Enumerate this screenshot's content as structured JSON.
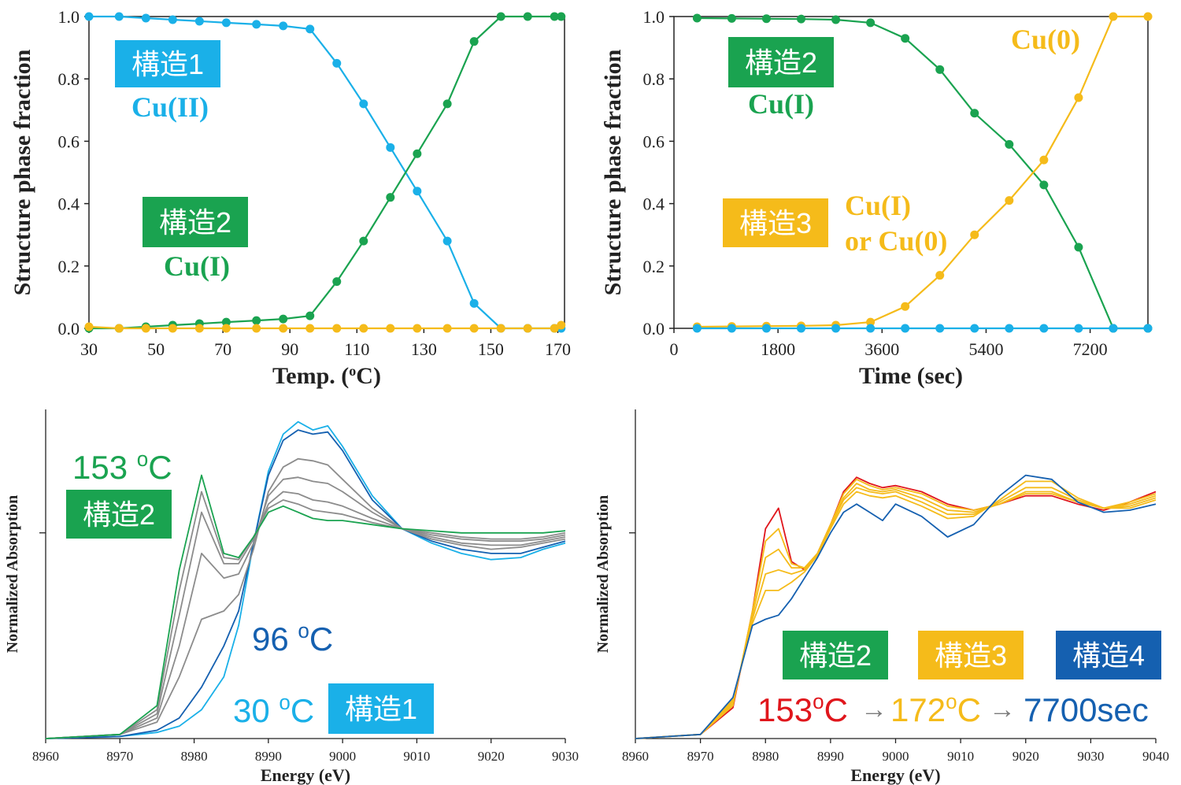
{
  "colors": {
    "cyan": "#1ab0e8",
    "green": "#1aa350",
    "gold": "#f5bb1a",
    "blue": "#1560b0",
    "gray": "#8c8c8c",
    "red": "#e0161c"
  },
  "chart_data": [
    {
      "type": "line",
      "xlabel": "Temp. (oC)",
      "ylabel": "Structure phase fraction",
      "xlim": [
        30,
        172
      ],
      "ylim": [
        0,
        1
      ],
      "xticks": [
        "30",
        "50",
        "70",
        "90",
        "110",
        "130",
        "150",
        "170"
      ],
      "yticks": [
        "0.0",
        "0.2",
        "0.4",
        "0.6",
        "0.8",
        "1.0"
      ],
      "x": [
        30,
        39,
        47,
        55,
        63,
        71,
        80,
        88,
        96,
        104,
        112,
        120,
        128,
        137,
        145,
        153,
        161,
        169,
        171
      ],
      "series": [
        {
          "name": "構造1",
          "color": "#1ab0e8",
          "values": [
            1.0,
            1.0,
            0.995,
            0.99,
            0.985,
            0.98,
            0.975,
            0.97,
            0.96,
            0.85,
            0.72,
            0.58,
            0.44,
            0.28,
            0.08,
            0.0,
            0.0,
            0.0,
            0.0
          ]
        },
        {
          "name": "構造2",
          "color": "#1aa350",
          "values": [
            0.0,
            0.0,
            0.005,
            0.01,
            0.015,
            0.02,
            0.025,
            0.03,
            0.04,
            0.15,
            0.28,
            0.42,
            0.56,
            0.72,
            0.92,
            1.0,
            1.0,
            1.0,
            1.0
          ]
        },
        {
          "name": "",
          "color": "#f5bb1a",
          "values": [
            0.005,
            0.0,
            0.0,
            0.0,
            0.0,
            0.0,
            0.0,
            0.0,
            0.0,
            0.0,
            0.0,
            0.0,
            0.0,
            0.0,
            0.0,
            0.0,
            0.0,
            0.0,
            0.01
          ]
        }
      ],
      "annotations": [
        {
          "label": "構造1",
          "sub": "Cu(II)",
          "color": "#1ab0e8"
        },
        {
          "label": "構造2",
          "sub": "Cu(I)",
          "color": "#1aa350"
        }
      ]
    },
    {
      "type": "line",
      "xlabel": "Time (sec)",
      "ylabel": "Structure phase fraction",
      "xlim": [
        0,
        8200
      ],
      "ylim": [
        0,
        1
      ],
      "xticks": [
        "0",
        "1800",
        "3600",
        "5400",
        "7200"
      ],
      "yticks": [
        "0.0",
        "0.2",
        "0.4",
        "0.6",
        "0.8",
        "1.0"
      ],
      "x": [
        400,
        1000,
        1600,
        2200,
        2800,
        3400,
        4000,
        4600,
        5200,
        5800,
        6400,
        7000,
        7600,
        8200
      ],
      "series": [
        {
          "name": "構造2",
          "color": "#1aa350",
          "values": [
            0.995,
            0.994,
            0.993,
            0.992,
            0.99,
            0.98,
            0.93,
            0.83,
            0.69,
            0.59,
            0.46,
            0.26,
            0.0,
            0.0
          ]
        },
        {
          "name": "構造3",
          "color": "#f5bb1a",
          "values": [
            0.005,
            0.006,
            0.007,
            0.008,
            0.01,
            0.02,
            0.07,
            0.17,
            0.3,
            0.41,
            0.54,
            0.74,
            1.0,
            1.0
          ]
        },
        {
          "name": "",
          "color": "#1ab0e8",
          "values": [
            0.0,
            0.0,
            0.0,
            0.0,
            0.0,
            0.0,
            0.0,
            0.0,
            0.0,
            0.0,
            0.0,
            0.0,
            0.0,
            0.0
          ]
        }
      ],
      "annotations": [
        {
          "label": "構造2",
          "sub": "Cu(I)",
          "color": "#1aa350"
        },
        {
          "label": "構造3",
          "sub": "Cu(I)",
          "sub2": "or Cu(0)",
          "color": "#f5bb1a"
        },
        {
          "label": "Cu(0)",
          "color": "#f5bb1a"
        }
      ]
    },
    {
      "type": "line",
      "xlabel": "Energy (eV)",
      "ylabel": "Normalized Absorption",
      "xlim": [
        8960,
        9030
      ],
      "ylim": [
        0,
        1.6
      ],
      "xticks": [
        "8960",
        "8970",
        "8980",
        "8990",
        "9000",
        "9010",
        "9020",
        "9030"
      ],
      "yticks": [
        "1"
      ],
      "labels": {
        "t1": "153 oC",
        "t1_struct": "構造2",
        "t2": "96 oC",
        "t3": "30 oC",
        "t3_struct": "構造1"
      },
      "series": [
        {
          "name": "30 oC",
          "color": "#1ab0e8",
          "x": [
            8960,
            8970,
            8975,
            8978,
            8981,
            8984,
            8986,
            8988,
            8990,
            8992,
            8994,
            8996,
            8998,
            9000,
            9004,
            9008,
            9012,
            9016,
            9020,
            9024,
            9027,
            9030
          ],
          "values": [
            0.0,
            0.01,
            0.03,
            0.06,
            0.14,
            0.3,
            0.55,
            0.95,
            1.3,
            1.48,
            1.54,
            1.5,
            1.52,
            1.42,
            1.18,
            1.02,
            0.95,
            0.9,
            0.87,
            0.88,
            0.92,
            0.95
          ]
        },
        {
          "name": "96 oC",
          "color": "#1560b0",
          "x": [
            8960,
            8970,
            8975,
            8978,
            8981,
            8984,
            8986,
            8988,
            8990,
            8992,
            8994,
            8996,
            8998,
            9000,
            9004,
            9008,
            9012,
            9016,
            9020,
            9024,
            9027,
            9030
          ],
          "values": [
            0.0,
            0.01,
            0.04,
            0.1,
            0.25,
            0.45,
            0.62,
            0.95,
            1.28,
            1.45,
            1.5,
            1.48,
            1.49,
            1.4,
            1.16,
            1.02,
            0.96,
            0.92,
            0.9,
            0.9,
            0.93,
            0.96
          ]
        },
        {
          "name": "",
          "color": "#8c8c8c",
          "x": [
            8960,
            8970,
            8975,
            8978,
            8981,
            8984,
            8986,
            8988,
            8990,
            8992,
            8994,
            8996,
            8998,
            9000,
            9004,
            9008,
            9012,
            9016,
            9020,
            9024,
            9027,
            9030
          ],
          "values": [
            0.0,
            0.02,
            0.08,
            0.3,
            0.58,
            0.62,
            0.7,
            0.92,
            1.2,
            1.32,
            1.36,
            1.35,
            1.33,
            1.26,
            1.12,
            1.02,
            0.97,
            0.94,
            0.92,
            0.93,
            0.95,
            0.97
          ]
        },
        {
          "name": "",
          "color": "#8c8c8c",
          "x": [
            8960,
            8970,
            8975,
            8978,
            8981,
            8984,
            8986,
            8988,
            8990,
            8992,
            8994,
            8996,
            8998,
            9000,
            9004,
            9008,
            9012,
            9016,
            9020,
            9024,
            9027,
            9030
          ],
          "values": [
            0.0,
            0.02,
            0.1,
            0.45,
            0.9,
            0.78,
            0.8,
            0.95,
            1.18,
            1.26,
            1.27,
            1.25,
            1.24,
            1.2,
            1.1,
            1.02,
            0.98,
            0.95,
            0.94,
            0.94,
            0.96,
            0.98
          ]
        },
        {
          "name": "",
          "color": "#8c8c8c",
          "x": [
            8960,
            8970,
            8975,
            8978,
            8981,
            8984,
            8986,
            8988,
            8990,
            8992,
            8994,
            8996,
            8998,
            9000,
            9004,
            9008,
            9012,
            9016,
            9020,
            9024,
            9027,
            9030
          ],
          "values": [
            0.0,
            0.02,
            0.12,
            0.6,
            1.1,
            0.85,
            0.85,
            0.97,
            1.14,
            1.2,
            1.19,
            1.16,
            1.15,
            1.13,
            1.07,
            1.02,
            0.99,
            0.97,
            0.96,
            0.96,
            0.97,
            0.99
          ]
        },
        {
          "name": "",
          "color": "#8c8c8c",
          "x": [
            8960,
            8970,
            8975,
            8978,
            8981,
            8984,
            8986,
            8988,
            8990,
            8992,
            8994,
            8996,
            8998,
            9000,
            9004,
            9008,
            9012,
            9016,
            9020,
            9024,
            9027,
            9030
          ],
          "values": [
            0.0,
            0.02,
            0.14,
            0.72,
            1.2,
            0.88,
            0.87,
            0.98,
            1.12,
            1.16,
            1.14,
            1.11,
            1.1,
            1.09,
            1.05,
            1.02,
            1.0,
            0.98,
            0.97,
            0.97,
            0.98,
            1.0
          ]
        },
        {
          "name": "153 oC",
          "color": "#1aa350",
          "x": [
            8960,
            8970,
            8975,
            8978,
            8981,
            8984,
            8986,
            8988,
            8990,
            8992,
            8994,
            8996,
            8998,
            9000,
            9004,
            9008,
            9012,
            9016,
            9020,
            9024,
            9027,
            9030
          ],
          "values": [
            0.0,
            0.02,
            0.16,
            0.82,
            1.28,
            0.9,
            0.88,
            0.98,
            1.1,
            1.13,
            1.1,
            1.07,
            1.06,
            1.06,
            1.04,
            1.02,
            1.01,
            1.0,
            1.0,
            1.0,
            1.0,
            1.01
          ]
        }
      ]
    },
    {
      "type": "line",
      "xlabel": "Energy (eV)",
      "ylabel": "Normalized Absorption",
      "xlim": [
        8960,
        9040
      ],
      "ylim": [
        0,
        1.6
      ],
      "xticks": [
        "8960",
        "8970",
        "8980",
        "8990",
        "9000",
        "9010",
        "9020",
        "9030",
        "9040"
      ],
      "yticks": [
        "1"
      ],
      "labels": {
        "s2": "構造2",
        "s3": "構造3",
        "s4": "構造4",
        "t1": "153oC",
        "t2": "172oC",
        "t3": "7700sec"
      },
      "series": [
        {
          "name": "153oC",
          "color": "#e0161c",
          "x": [
            8960,
            8970,
            8975,
            8978,
            8980,
            8982,
            8984,
            8986,
            8988,
            8990,
            8992,
            8994,
            8996,
            8998,
            9000,
            9004,
            9008,
            9012,
            9016,
            9020,
            9024,
            9028,
            9032,
            9036,
            9040
          ],
          "values": [
            0.0,
            0.02,
            0.15,
            0.62,
            1.02,
            1.12,
            0.86,
            0.82,
            0.9,
            1.04,
            1.2,
            1.27,
            1.24,
            1.22,
            1.23,
            1.2,
            1.14,
            1.11,
            1.14,
            1.18,
            1.18,
            1.14,
            1.11,
            1.15,
            1.2
          ]
        },
        {
          "name": "",
          "color": "#f5bb1a",
          "x": [
            8960,
            8970,
            8975,
            8978,
            8980,
            8982,
            8984,
            8986,
            8988,
            8990,
            8992,
            8994,
            8996,
            8998,
            9000,
            9004,
            9008,
            9012,
            9016,
            9020,
            9024,
            9028,
            9032,
            9036,
            9040
          ],
          "values": [
            0.0,
            0.02,
            0.16,
            0.62,
            0.96,
            1.02,
            0.85,
            0.83,
            0.9,
            1.04,
            1.19,
            1.26,
            1.23,
            1.21,
            1.22,
            1.19,
            1.13,
            1.11,
            1.14,
            1.19,
            1.19,
            1.15,
            1.12,
            1.15,
            1.19
          ]
        },
        {
          "name": "",
          "color": "#f5bb1a",
          "x": [
            8960,
            8970,
            8975,
            8978,
            8980,
            8982,
            8984,
            8986,
            8988,
            8990,
            8992,
            8994,
            8996,
            8998,
            9000,
            9004,
            9008,
            9012,
            9016,
            9020,
            9024,
            9028,
            9032,
            9036,
            9040
          ],
          "values": [
            0.0,
            0.02,
            0.17,
            0.6,
            0.88,
            0.92,
            0.83,
            0.83,
            0.9,
            1.04,
            1.17,
            1.24,
            1.21,
            1.2,
            1.21,
            1.17,
            1.11,
            1.1,
            1.14,
            1.2,
            1.2,
            1.15,
            1.12,
            1.14,
            1.18
          ]
        },
        {
          "name": "",
          "color": "#f5bb1a",
          "x": [
            8960,
            8970,
            8975,
            8978,
            8980,
            8982,
            8984,
            8986,
            8988,
            8990,
            8992,
            8994,
            8996,
            8998,
            9000,
            9004,
            9008,
            9012,
            9016,
            9020,
            9024,
            9028,
            9032,
            9036,
            9040
          ],
          "values": [
            0.0,
            0.02,
            0.18,
            0.58,
            0.8,
            0.82,
            0.8,
            0.82,
            0.9,
            1.03,
            1.16,
            1.22,
            1.2,
            1.19,
            1.2,
            1.15,
            1.09,
            1.09,
            1.15,
            1.22,
            1.22,
            1.16,
            1.12,
            1.13,
            1.17
          ]
        },
        {
          "name": "172oC",
          "color": "#f5bb1a",
          "x": [
            8960,
            8970,
            8975,
            8978,
            8980,
            8982,
            8984,
            8986,
            8988,
            8990,
            8992,
            8994,
            8996,
            8998,
            9000,
            9004,
            9008,
            9012,
            9016,
            9020,
            9024,
            9028,
            9032,
            9036,
            9040
          ],
          "values": [
            0.0,
            0.02,
            0.19,
            0.56,
            0.72,
            0.72,
            0.76,
            0.81,
            0.89,
            1.02,
            1.14,
            1.2,
            1.18,
            1.17,
            1.18,
            1.13,
            1.07,
            1.08,
            1.16,
            1.25,
            1.25,
            1.17,
            1.12,
            1.12,
            1.16
          ]
        },
        {
          "name": "7700sec",
          "color": "#1560b0",
          "x": [
            8960,
            8970,
            8975,
            8978,
            8980,
            8982,
            8984,
            8986,
            8988,
            8990,
            8992,
            8994,
            8996,
            8998,
            9000,
            9004,
            9008,
            9012,
            9016,
            9020,
            9024,
            9028,
            9032,
            9036,
            9040
          ],
          "values": [
            0.0,
            0.02,
            0.2,
            0.55,
            0.58,
            0.6,
            0.68,
            0.78,
            0.88,
            1.0,
            1.1,
            1.14,
            1.1,
            1.06,
            1.14,
            1.08,
            0.98,
            1.04,
            1.18,
            1.28,
            1.26,
            1.15,
            1.1,
            1.11,
            1.14
          ]
        }
      ]
    }
  ]
}
